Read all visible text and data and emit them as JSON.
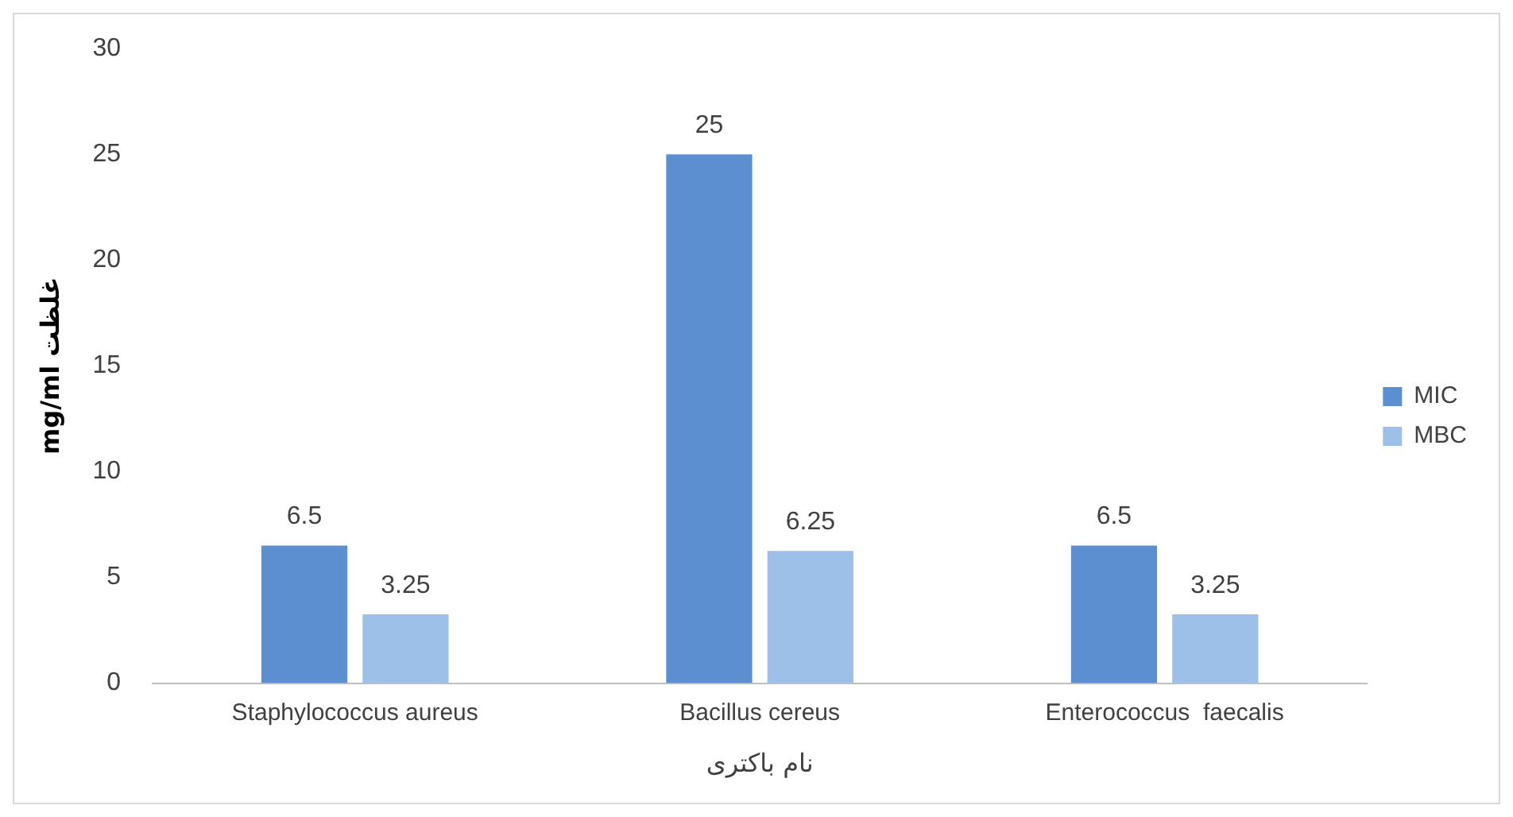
{
  "chart_data": {
    "type": "bar",
    "xlabel": "نام باکتری",
    "ylabel": "mg/ml غلظت",
    "categories": [
      "Staphylococcus aureus",
      "Bacillus cereus",
      "Enterococcus  faecalis"
    ],
    "series": [
      {
        "name": "MIC",
        "color": "#5b8fd0",
        "values": [
          6.5,
          25,
          6.5
        ]
      },
      {
        "name": "MBC",
        "color": "#9cc0e8",
        "values": [
          3.25,
          6.25,
          3.25
        ]
      }
    ],
    "ylim": [
      0,
      30
    ],
    "yticks": [
      0,
      5,
      10,
      15,
      20,
      25,
      30
    ],
    "grid": false,
    "legend": "right",
    "data_labels": true
  }
}
